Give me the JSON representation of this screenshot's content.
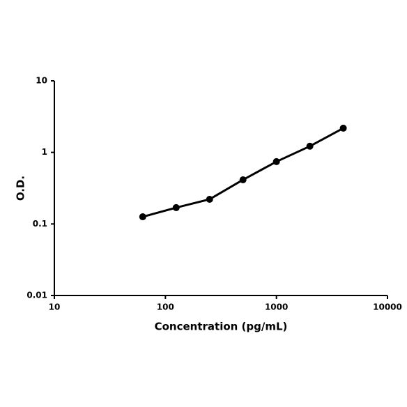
{
  "chart_data": {
    "type": "line",
    "x_label": "Concentration (pg/mL)",
    "y_label": "O.D.",
    "x": [
      62.5,
      125,
      250,
      500,
      1000,
      2000,
      4000
    ],
    "series": [
      {
        "color": "#000000",
        "values": [
          0.126,
          0.169,
          0.221,
          0.414,
          0.743,
          1.22,
          2.18
        ]
      }
    ],
    "x_scale": "log",
    "y_scale": "log",
    "xlim": [
      10,
      10000
    ],
    "xticks": [
      10,
      100,
      1000,
      10000
    ],
    "ylim": [
      0.01,
      10
    ],
    "yticks": [
      0.01,
      0.1,
      1,
      10
    ],
    "grid": false
  }
}
